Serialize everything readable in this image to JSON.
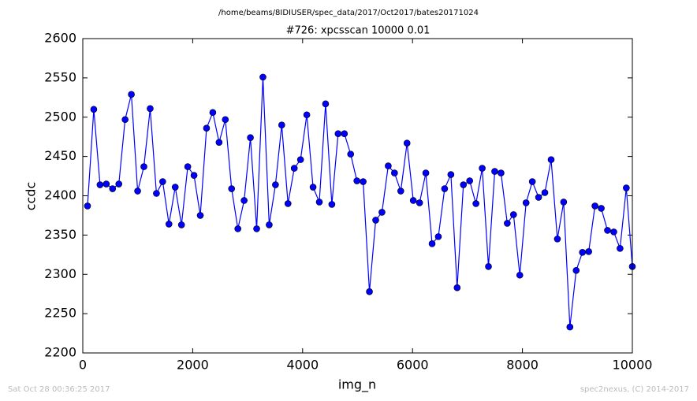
{
  "page_title": "/home/beams/8IDIUSER/spec_data/2017/Oct2017/bates20171024",
  "footer_left": "Sat Oct 28 00:36:25 2017",
  "footer_right": "spec2nexus, (C) 2014-2017",
  "chart_data": {
    "type": "line",
    "title": "#726: xpcsscan 10000 0.01",
    "x_label": "img_n",
    "y_label": "ccdc",
    "x": [
      86,
      200,
      314,
      428,
      542,
      656,
      770,
      884,
      998,
      1112,
      1226,
      1340,
      1454,
      1568,
      1682,
      1796,
      1910,
      2024,
      2138,
      2252,
      2366,
      2480,
      2594,
      2708,
      2822,
      2936,
      3050,
      3164,
      3278,
      3392,
      3506,
      3620,
      3734,
      3848,
      3962,
      4076,
      4190,
      4304,
      4418,
      4532,
      4646,
      4760,
      4874,
      4988,
      5102,
      5216,
      5330,
      5444,
      5558,
      5672,
      5786,
      5900,
      6014,
      6128,
      6242,
      6356,
      6470,
      6584,
      6698,
      6812,
      6926,
      7040,
      7154,
      7268,
      7382,
      7496,
      7610,
      7724,
      7838,
      7952,
      8066,
      8180,
      8294,
      8408,
      8522,
      8636,
      8750,
      8864,
      8978,
      9092,
      9206,
      9320,
      9434,
      9548,
      9662,
      9776,
      9890,
      10000
    ],
    "series": [
      {
        "name": "ccdc",
        "color": "#0000ff",
        "values": [
          2387,
          2510,
          2414,
          2415,
          2409,
          2415,
          2497,
          2529,
          2406,
          2437,
          2511,
          2403,
          2418,
          2364,
          2411,
          2363,
          2437,
          2426,
          2375,
          2486,
          2506,
          2468,
          2497,
          2409,
          2358,
          2394,
          2474,
          2358,
          2551,
          2363,
          2414,
          2490,
          2390,
          2435,
          2446,
          2503,
          2411,
          2392,
          2517,
          2389,
          2479,
          2479,
          2453,
          2419,
          2418,
          2278,
          2369,
          2379,
          2438,
          2429,
          2406,
          2467,
          2394,
          2391,
          2429,
          2339,
          2348,
          2409,
          2427,
          2283,
          2414,
          2419,
          2390,
          2435,
          2310,
          2431,
          2429,
          2365,
          2376,
          2299,
          2391,
          2418,
          2398,
          2404,
          2446,
          2345,
          2392,
          2233,
          2305,
          2328,
          2329,
          2387,
          2384,
          2356,
          2354,
          2333,
          2410,
          2310
        ]
      }
    ],
    "xlim": [
      0,
      10000
    ],
    "xticks": [
      0,
      2000,
      4000,
      6000,
      8000,
      10000
    ],
    "ylim": [
      2200,
      2600
    ],
    "yticks": [
      2200,
      2250,
      2300,
      2350,
      2400,
      2450,
      2500,
      2550,
      2600
    ],
    "grid": false
  }
}
